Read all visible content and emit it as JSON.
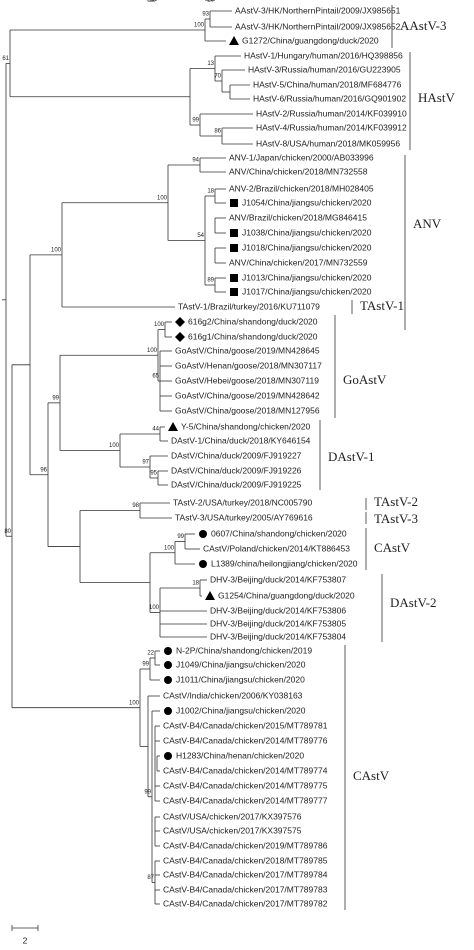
{
  "leaves": [
    "AAstV-3/HK/NorthernPintail/2009/JX985651",
    "AAstV-3/HK/NorthernPintail/2009/JX985652",
    "G1272/China/guangdong/duck/2020",
    "HAstV-1/Hungary/human/2016/HQ398856",
    "HAstV-3/Russia/human/2016/GU223905",
    "HAstV-5/China/human/2018/MF684776",
    "HAstV-6/Russia/human/2016/GQ901902",
    "HAstV-2/Russia/human/2014/KF039910",
    "HAstV-4/Russia/human/2014/KF039912",
    "HAstV-8/USA/human/2018/MK059956",
    "ANV-1/Japan/chicken/2000/AB033996",
    "ANV/China/chicken/2018/MN732558",
    "ANV-2/Brazil/chicken/2018/MH028405",
    "J1054/China/jiangsu/chicken/2020",
    "ANV/Brazil/chicken/2018/MG846415",
    "J1038/China/jiangsu/chicken/2020",
    "J1018/China/jiangsu/chicken/2020",
    "ANV/China/chicken/2017/MN732559",
    "J1013/China/jiangsu/chicken/2020",
    "J1017/China/jiangsu/chicken/2020",
    "TAstV-1/Brazil/turkey/2016/KU711079",
    "616g2/China/shandong/duck/2020",
    "616g1/China/shandong/duck/2020",
    "GoAstV/China/goose/2019/MN428645",
    "GoAstV/Henan/goose/2018/MN307117",
    "GoAstV/Hebei/goose/2018/MN307119",
    "GoAstV/China/goose/2019/MN428642",
    "GoAstV/China/goose/2018/MN127956",
    "Y-5/China/shandong/chicken/2020",
    "DAstV-1/China/duck/2018/KY646154",
    "DAstV/China/duck/2009/FJ919227",
    "DAstV/China/duck/2009/FJ919226",
    "DAstV/China/duck/2009/FJ919225",
    "TAstV-2/USA/turkey/2018/NC005790",
    "TAstV-3/USA/turkey/2005/AY769616",
    "0607/China/shandong/chicken/2020",
    "CAstV/Poland/chicken/2014/KT886453",
    "L1389/china/heilongjiang/chicken/2020",
    "DHV-3/Beijing/duck/2014/KF753807",
    "G1254/China/guangdong/duck/2020",
    "DHV-3/Beijing/duck/2014/KF753806",
    "DHV-3/Beijing/duck/2014/KF753805",
    "DHV-3/Beijing/duck/2014/KF753804",
    "N-2P/China/shandong/chicken/2019",
    "J1049/China/jiangsu/chicken/2020",
    "J1011/China/jiangsu/chicken/2020",
    "CAstV/India/chicken/2006/KY038163",
    "J1002/China/jiangsu/chicken/2020",
    "CAstV-B4/Canada/chicken/2015/MT789781",
    "CAstV-B4/Canada/chicken/2014/MT789776",
    "H1283/China/henan/chicken/2020",
    "CAstV-B4/Canada/chicken/2014/MT789774",
    "CAstV-B4/Canada/chicken/2014/MT789775",
    "CAstV-B4/Canada/chicken/2014/MT789777",
    "CAstV/USA/chicken/2017/KX397576",
    "CAstV/USA/chicken/2017/KX397575",
    "CAstV-B4/Canada/chicken/2019/MT789786",
    "CAstV-B4/Canada/chicken/2018/MT789785",
    "CAstV-B4/Canada/chicken/2017/MT789784",
    "CAstV-B4/Canada/chicken/2017/MT789783",
    "CAstV-B4/Canada/chicken/2017/MT789782"
  ],
  "bootstrap": [
    61,
    93,
    100,
    13,
    70,
    99,
    86,
    94,
    100,
    18,
    27,
    20,
    89,
    54,
    100,
    65,
    100,
    100,
    44,
    97,
    95,
    100,
    99,
    98,
    99,
    100,
    18,
    100,
    96,
    80,
    22,
    99,
    99,
    100,
    89,
    58,
    83,
    87
  ],
  "clades": [
    "AAstV-3",
    "HAstV",
    "ANV",
    "TAstV-1",
    "GoAstV",
    "DAstV-1",
    "TAstV-2",
    "TAstV-3",
    "CAstV",
    "DAstV-2",
    "CAstV"
  ],
  "scale_bar": "2"
}
